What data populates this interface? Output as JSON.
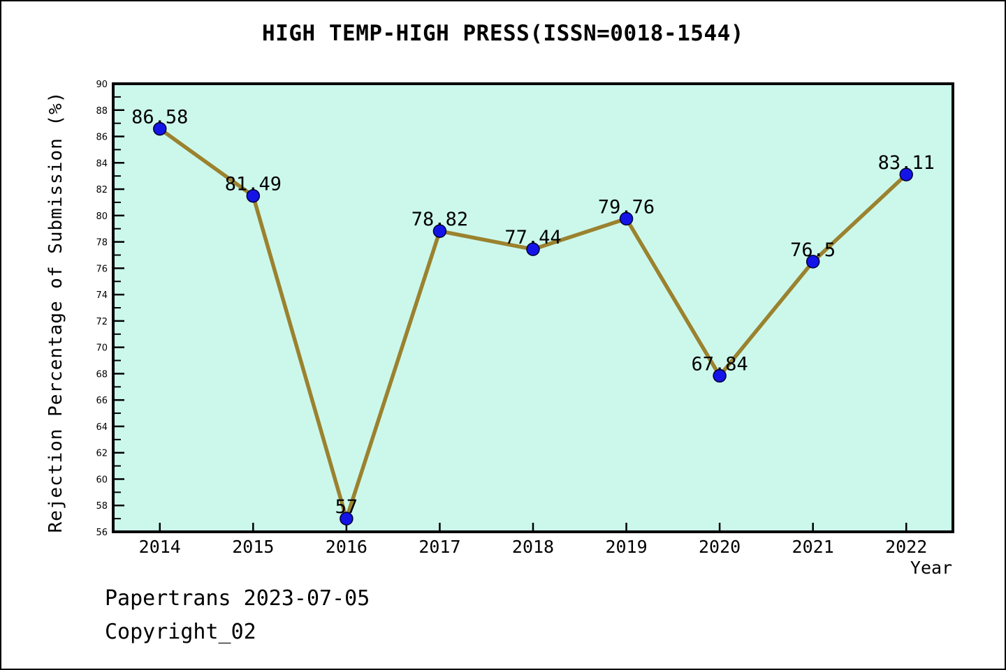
{
  "header": {
    "title": "HIGH TEMP-HIGH PRESS(ISSN=0018-1544)"
  },
  "footer": {
    "line1": "Papertrans 2023-07-05",
    "line2": "Copyright_02"
  },
  "chart_data": {
    "type": "line",
    "title": "HIGH TEMP-HIGH PRESS(ISSN=0018-1544)",
    "categories": [
      "2014",
      "2015",
      "2016",
      "2017",
      "2018",
      "2019",
      "2020",
      "2021",
      "2022"
    ],
    "values": [
      86.58,
      81.49,
      57,
      78.82,
      77.44,
      79.76,
      67.84,
      76.5,
      83.11
    ],
    "point_labels": [
      "86.58",
      "81.49",
      "57",
      "78.82",
      "77.44",
      "79.76",
      "67.84",
      "76.5",
      "83.11"
    ],
    "xlabel": "Year",
    "ylabel": "Rejection Percentage of Submission (%)",
    "ylim": [
      56,
      90
    ],
    "ytick_step": 2,
    "yminor_step": 1,
    "grid": false,
    "legend": null,
    "colors": {
      "plot_bg": "#ccf8ec",
      "line": "#9b822e",
      "marker_fill": "#1414e8",
      "marker_edge": "#000030",
      "axis": "#000000",
      "text": "#000000",
      "page_bg": "#ffffff"
    }
  }
}
